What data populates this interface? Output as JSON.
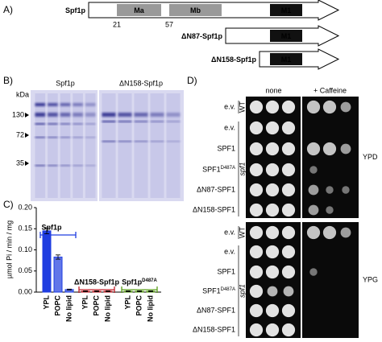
{
  "panel_a": {
    "label": "A)",
    "constructs": [
      {
        "name": "Spf1p",
        "domains": [
          "Ma",
          "Mb",
          "M1"
        ],
        "positions": [
          21,
          57
        ]
      },
      {
        "name": "ΔN87-Spf1p",
        "domains": [
          "M1"
        ]
      },
      {
        "name": "ΔN158-Spf1p",
        "domains": [
          "M1"
        ]
      }
    ]
  },
  "panel_b": {
    "label": "B)",
    "lanes": [
      "Spf1p",
      "ΔN158-Spf1p"
    ],
    "unit": "kDa",
    "markers": [
      130,
      72,
      35
    ]
  },
  "chart_data": {
    "type": "bar",
    "panel_label": "C)",
    "y_label": "µmol Pi / min / mg",
    "categories": [
      "YPL",
      "POPC",
      "No lipid"
    ],
    "series": [
      {
        "name": "Spf1p",
        "color": "#1f3de0",
        "values": [
          0.145,
          0.083,
          0.006
        ],
        "errors": [
          0.007,
          0.005,
          0.001
        ]
      },
      {
        "name": "ΔN158-Spf1p",
        "color": "#c0202a",
        "values": [
          0.002,
          0.002,
          0.002
        ],
        "errors": [
          0.001,
          0.001,
          0.001
        ]
      },
      {
        "name": "Spf1p",
        "name_sup": "D487A",
        "color": "#5a9e1a",
        "values": [
          0.002,
          0.002,
          0.002
        ],
        "errors": [
          0.001,
          0.001,
          0.001
        ]
      }
    ],
    "ylim": [
      0,
      0.2
    ],
    "yticks": [
      {
        "value": 0,
        "label": "0.00"
      },
      {
        "value": 0.05,
        "label": "0.05"
      },
      {
        "value": 0.1,
        "label": "0.10"
      },
      {
        "value": 0.15,
        "label": "0.15"
      },
      {
        "value": 0.2,
        "label": "0.20"
      }
    ]
  },
  "panel_d": {
    "label": "D)",
    "columns": [
      "none",
      "+ Caffeine"
    ],
    "strains": [
      {
        "name": "WT",
        "rows": [
          {
            "label": "e.v."
          }
        ]
      },
      {
        "name": "spf1",
        "rows": [
          {
            "label": "e.v."
          },
          {
            "label": "SPF1"
          },
          {
            "label": "SPF1",
            "sup": "D487A"
          },
          {
            "label": "ΔN87-SPF1"
          },
          {
            "label": "ΔN158-SPF1"
          }
        ]
      }
    ],
    "media": [
      "YPD",
      "YPG"
    ]
  }
}
